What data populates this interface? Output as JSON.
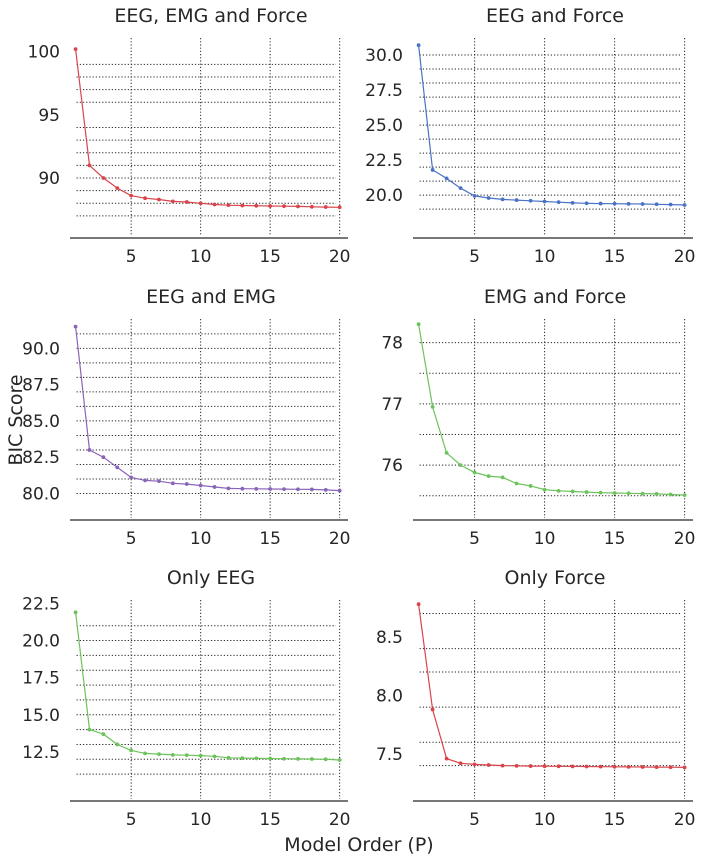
{
  "figure": {
    "shared_xlabel": "Model Order (P)",
    "shared_ylabel": "BIC Score"
  },
  "chart_data": [
    {
      "type": "line",
      "title": "EEG, EMG and Force",
      "color": "#d9444b",
      "x": [
        1,
        2,
        3,
        4,
        5,
        6,
        7,
        8,
        9,
        10,
        11,
        12,
        13,
        14,
        15,
        16,
        17,
        18,
        19,
        20
      ],
      "y": [
        100.2,
        91.0,
        90.0,
        89.2,
        88.6,
        88.4,
        88.3,
        88.15,
        88.1,
        88.0,
        87.9,
        87.85,
        87.82,
        87.8,
        87.78,
        87.77,
        87.75,
        87.72,
        87.7,
        87.68
      ],
      "xticks": [
        5,
        10,
        15,
        20
      ],
      "yticks": [
        90,
        95,
        100
      ],
      "ylim": [
        86.2,
        101.4
      ],
      "hgrid": [
        87.0,
        88.0,
        89.0,
        90.0,
        91.0,
        92.0,
        93.0,
        94.0,
        96.0,
        97.0,
        98.0,
        99.0
      ],
      "xgrid": [
        5,
        10,
        15,
        20
      ]
    },
    {
      "type": "line",
      "title": "EEG and Force",
      "color": "#4a72c7",
      "x": [
        1,
        2,
        3,
        4,
        5,
        6,
        7,
        8,
        9,
        10,
        11,
        12,
        13,
        14,
        15,
        16,
        17,
        18,
        19,
        20
      ],
      "y": [
        30.7,
        21.8,
        21.2,
        20.5,
        19.95,
        19.8,
        19.7,
        19.65,
        19.6,
        19.55,
        19.5,
        19.45,
        19.42,
        19.4,
        19.39,
        19.38,
        19.37,
        19.35,
        19.33,
        19.3
      ],
      "xticks": [
        5,
        10,
        15,
        20
      ],
      "yticks": [
        20.0,
        22.5,
        25.0,
        27.5,
        30.0
      ],
      "ylim": [
        17.8,
        31.5
      ],
      "hgrid": [
        19.0,
        20.0,
        21.0,
        22.0,
        23.0,
        24.0,
        25.0,
        26.0,
        27.0,
        28.0,
        29.0,
        30.0
      ],
      "xgrid": [
        5,
        10,
        15,
        20
      ]
    },
    {
      "type": "line",
      "title": "EEG and EMG",
      "color": "#8a64b8",
      "x": [
        1,
        2,
        3,
        4,
        5,
        6,
        7,
        8,
        9,
        10,
        11,
        12,
        13,
        14,
        15,
        16,
        17,
        18,
        19,
        20
      ],
      "y": [
        91.5,
        83.0,
        82.5,
        81.8,
        81.1,
        80.9,
        80.85,
        80.7,
        80.65,
        80.55,
        80.45,
        80.35,
        80.33,
        80.32,
        80.31,
        80.3,
        80.29,
        80.28,
        80.25,
        80.2
      ],
      "xticks": [
        5,
        10,
        15,
        20
      ],
      "yticks": [
        80.0,
        82.5,
        85.0,
        87.5,
        90.0
      ],
      "ylim": [
        79.0,
        92.3
      ],
      "hgrid": [
        80.0,
        81.0,
        82.0,
        83.0,
        84.0,
        85.0,
        86.0,
        87.0,
        88.0,
        89.0,
        90.0,
        91.0
      ],
      "xgrid": [
        5,
        10,
        15,
        20
      ]
    },
    {
      "type": "line",
      "title": "EMG and Force",
      "color": "#6cc35b",
      "x": [
        1,
        2,
        3,
        4,
        5,
        6,
        7,
        8,
        9,
        10,
        11,
        12,
        13,
        14,
        15,
        16,
        17,
        18,
        19,
        20
      ],
      "y": [
        78.3,
        76.95,
        76.2,
        76.0,
        75.88,
        75.82,
        75.8,
        75.7,
        75.66,
        75.6,
        75.58,
        75.57,
        75.56,
        75.55,
        75.545,
        75.54,
        75.535,
        75.53,
        75.52,
        75.51
      ],
      "xticks": [
        5,
        10,
        15,
        20
      ],
      "yticks": [
        76,
        77,
        78
      ],
      "ylim": [
        75.3,
        78.45
      ],
      "hgrid": [
        75.5,
        76.0,
        76.5,
        77.0,
        77.5,
        78.0
      ],
      "xgrid": [
        5,
        10,
        15,
        20
      ]
    },
    {
      "type": "line",
      "title": "Only EEG",
      "color": "#6cc35b",
      "x": [
        1,
        2,
        3,
        4,
        5,
        6,
        7,
        8,
        9,
        10,
        11,
        12,
        13,
        14,
        15,
        16,
        17,
        18,
        19,
        20
      ],
      "y": [
        21.9,
        14.0,
        13.7,
        13.0,
        12.6,
        12.4,
        12.35,
        12.3,
        12.28,
        12.25,
        12.2,
        12.1,
        12.08,
        12.06,
        12.05,
        12.04,
        12.03,
        12.02,
        12.0,
        11.95
      ],
      "xticks": [
        5,
        10,
        15,
        20
      ],
      "yticks": [
        12.5,
        15.0,
        17.5,
        20.0,
        22.5
      ],
      "ylim": [
        10.0,
        23.0
      ],
      "hgrid": [
        11.0,
        12.0,
        13.0,
        14.0,
        15.0,
        16.0,
        17.0,
        18.0,
        19.0,
        20.0,
        21.0
      ],
      "xgrid": [
        5,
        10,
        15,
        20
      ]
    },
    {
      "type": "line",
      "title": "Only Force",
      "color": "#d9444b",
      "x": [
        1,
        2,
        3,
        4,
        5,
        6,
        7,
        8,
        9,
        10,
        11,
        12,
        13,
        14,
        15,
        16,
        17,
        18,
        19,
        20
      ],
      "y": [
        8.78,
        7.88,
        7.46,
        7.42,
        7.41,
        7.405,
        7.4,
        7.398,
        7.396,
        7.395,
        7.394,
        7.393,
        7.392,
        7.391,
        7.39,
        7.389,
        7.388,
        7.387,
        7.386,
        7.385
      ],
      "xticks": [
        5,
        10,
        15,
        20
      ],
      "yticks": [
        7.5,
        8.0,
        8.5
      ],
      "ylim": [
        7.2,
        8.85
      ],
      "hgrid": [
        7.4,
        7.6,
        7.9,
        8.2,
        8.4,
        8.7
      ],
      "xgrid": [
        5,
        10,
        15,
        20
      ]
    }
  ]
}
